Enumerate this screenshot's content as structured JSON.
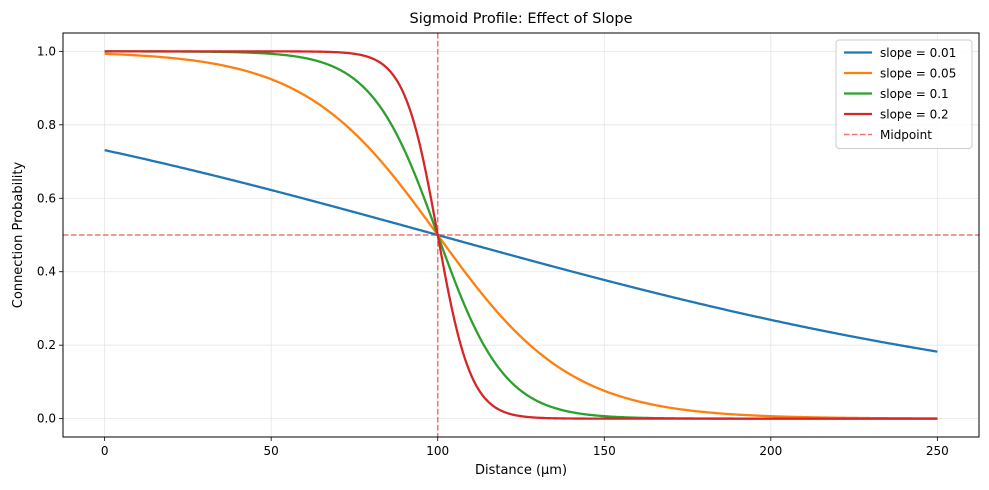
{
  "chart_data": {
    "type": "line",
    "title": "Sigmoid Profile: Effect of Slope",
    "xlabel": "Distance (µm)",
    "ylabel": "Connection Probability",
    "xlim": [
      -12.5,
      262.5
    ],
    "ylim": [
      -0.05,
      1.05
    ],
    "xticks": [
      0,
      50,
      100,
      150,
      200,
      250
    ],
    "xtick_labels": [
      "0",
      "50",
      "100",
      "150",
      "200",
      "250"
    ],
    "yticks": [
      0.0,
      0.2,
      0.4,
      0.6,
      0.8,
      1.0
    ],
    "ytick_labels": [
      "0.0",
      "0.2",
      "0.4",
      "0.6",
      "0.8",
      "1.0"
    ],
    "grid": true,
    "legend_position": "top-right",
    "midpoint": {
      "x": 100,
      "y": 0.5,
      "label": "Midpoint",
      "color": "#ef7470"
    },
    "series": [
      {
        "name": "slope = 0.01",
        "color": "#1f77b4",
        "x_start": 0,
        "x_end": 250,
        "slope": 0.01,
        "center": 100
      },
      {
        "name": "slope = 0.05",
        "color": "#ff7f0e",
        "x_start": 0,
        "x_end": 250,
        "slope": 0.05,
        "center": 100
      },
      {
        "name": "slope = 0.1",
        "color": "#2ca02c",
        "x_start": 0,
        "x_end": 250,
        "slope": 0.1,
        "center": 100
      },
      {
        "name": "slope = 0.2",
        "color": "#d62728",
        "x_start": 0,
        "x_end": 250,
        "slope": 0.2,
        "center": 100
      }
    ]
  }
}
